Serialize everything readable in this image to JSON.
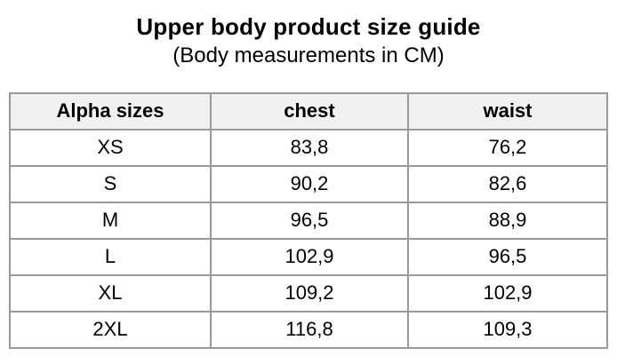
{
  "title": "Upper body product size guide",
  "subtitle": "(Body measurements in CM)",
  "table": {
    "columns": [
      "Alpha sizes",
      "chest",
      "waist"
    ],
    "rows": [
      [
        "XS",
        "83,8",
        "76,2"
      ],
      [
        "S",
        "90,2",
        "82,6"
      ],
      [
        "M",
        "96,5",
        "88,9"
      ],
      [
        "L",
        "102,9",
        "96,5"
      ],
      [
        "XL",
        "109,2",
        "102,9"
      ],
      [
        "2XL",
        "116,8",
        "109,3"
      ]
    ]
  },
  "colors": {
    "text": "#000000",
    "border": "#9a9a9a",
    "header_bg": "#f1f1f1",
    "row_bg": "#ffffff"
  }
}
